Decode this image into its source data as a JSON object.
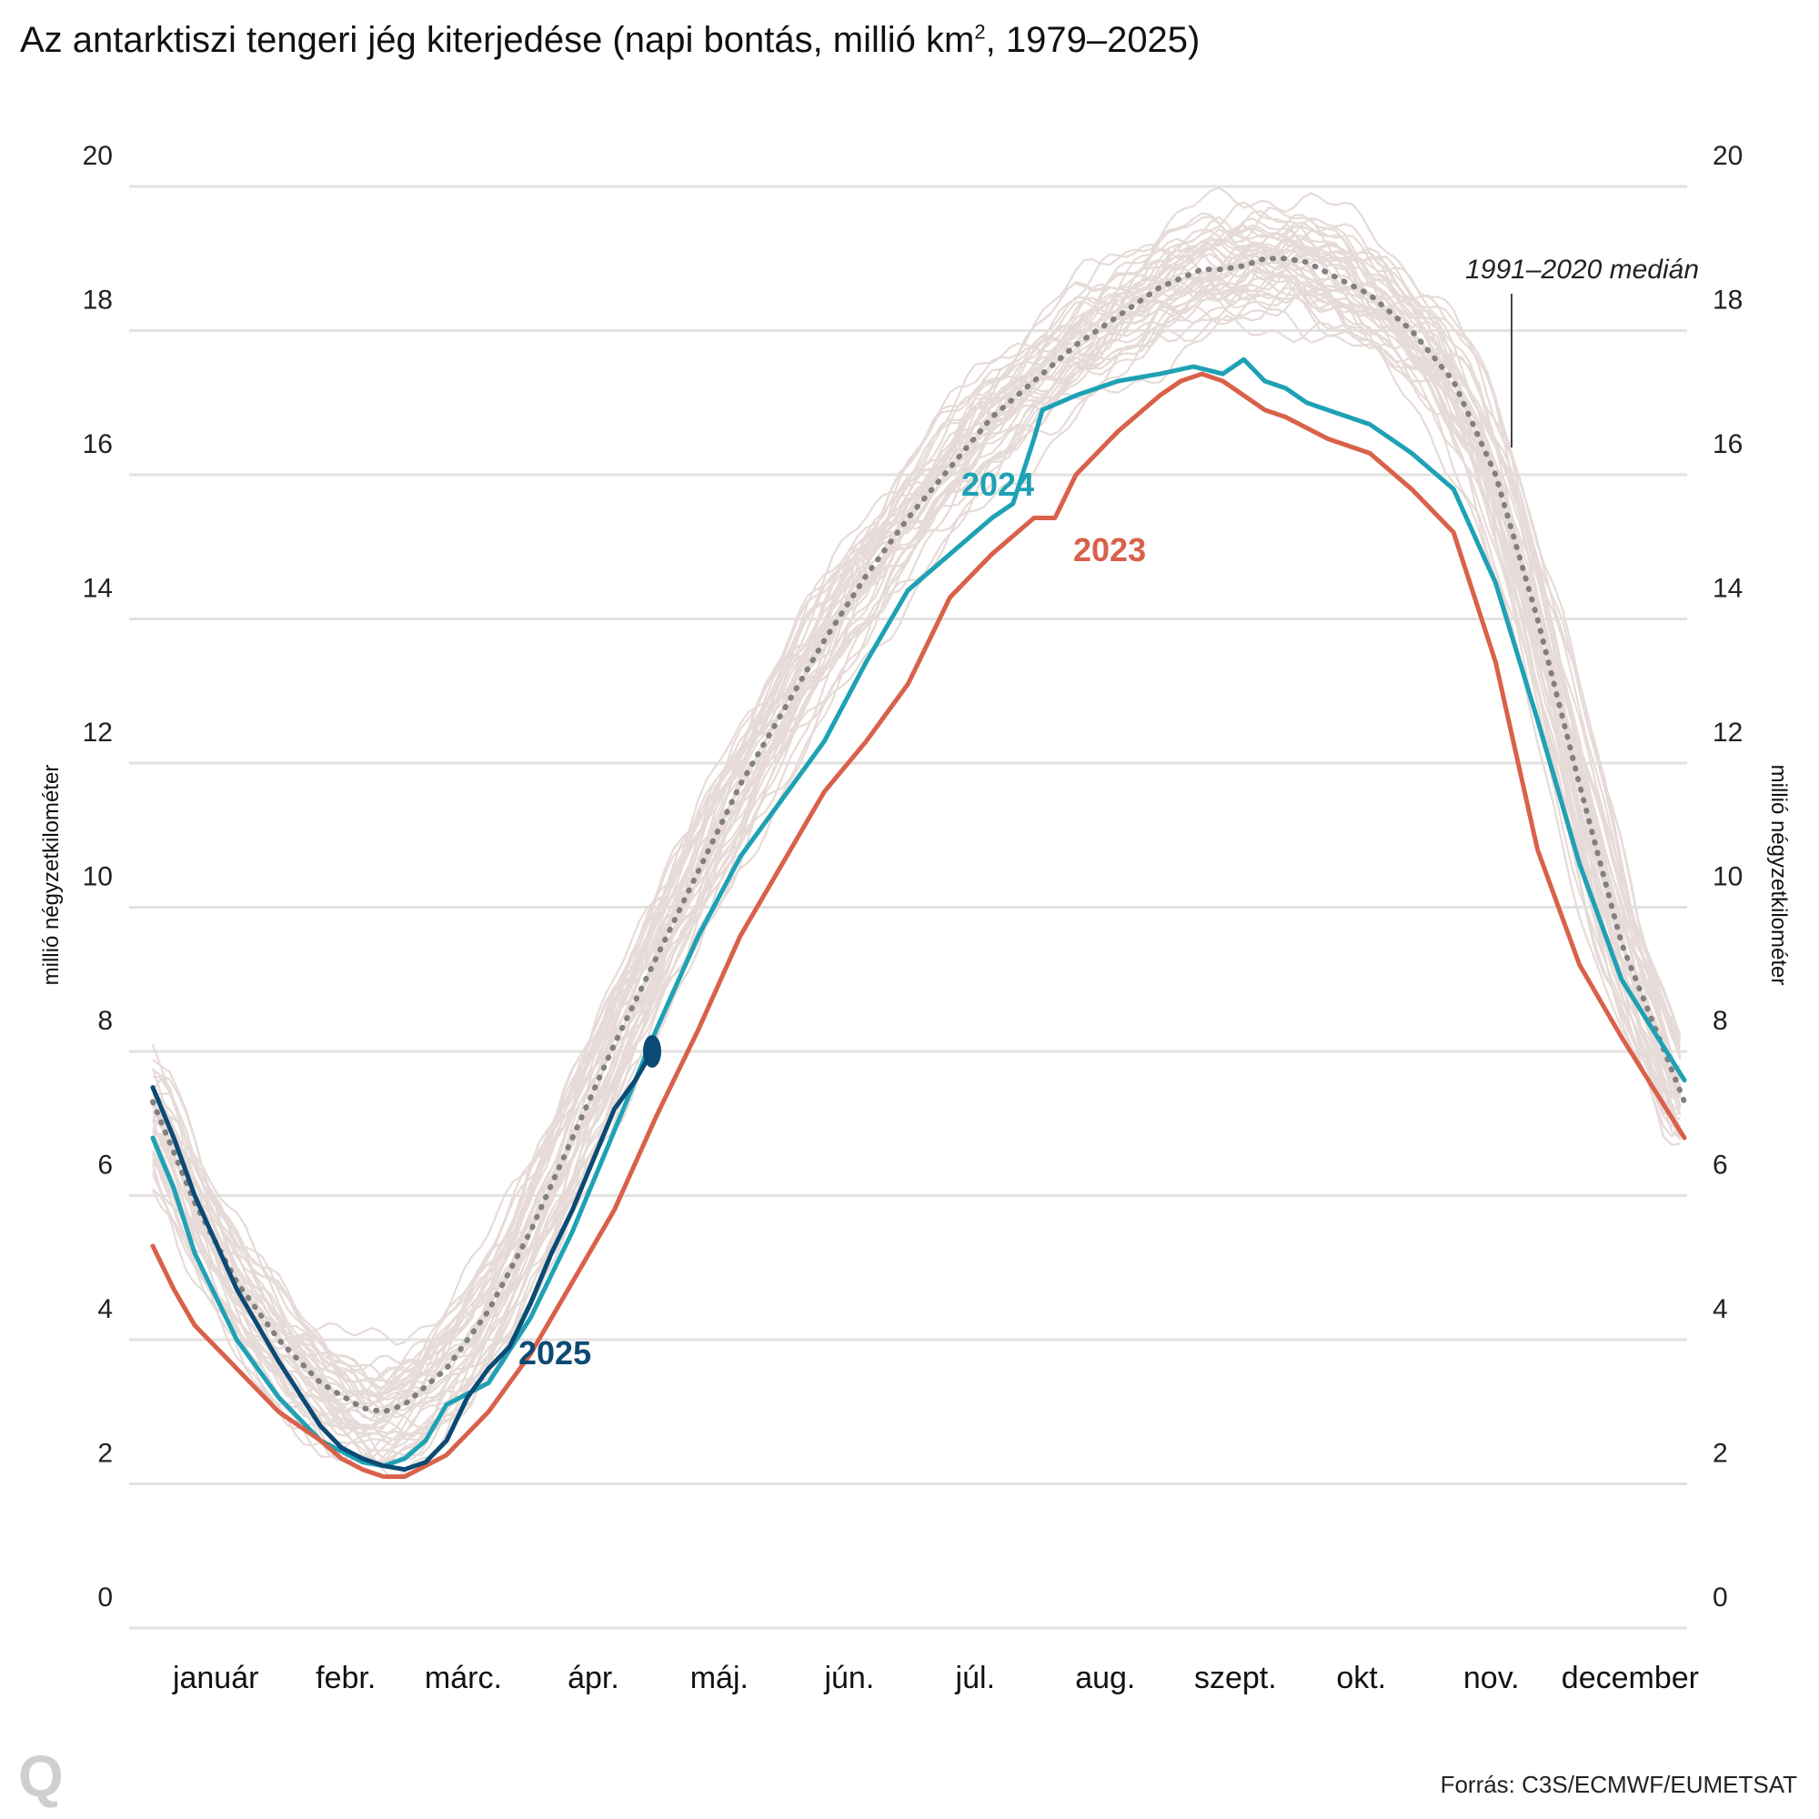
{
  "title": "Az antarktiszi tengeri jég kiterjedése (napi bontás, millió km",
  "title_sup": "2",
  "title_tail": ", 1979–2025)",
  "source": "Forrás: C3S/ECMWF/EUMETSAT",
  "logo": "Q",
  "chart_data": {
    "type": "line",
    "title": "Az antarktiszi tengeri jég kiterjedése (napi bontás, millió km², 1979–2025)",
    "ylabel": "millió négyzetkilométer",
    "ylabel_right": "millió négyzetkilométer",
    "ylim": [
      0,
      20
    ],
    "yticks": [
      0,
      2,
      4,
      6,
      8,
      10,
      12,
      14,
      16,
      18,
      20
    ],
    "xlim": [
      0,
      365
    ],
    "month_labels": [
      "január",
      "febr.",
      "márc.",
      "ápr.",
      "máj.",
      "jún.",
      "júl.",
      "aug.",
      "szept.",
      "okt.",
      "nov.",
      "december"
    ],
    "month_label_days": [
      15,
      46,
      74,
      105,
      135,
      166,
      196,
      227,
      258,
      288,
      319,
      349
    ],
    "grid": true,
    "background_years": "1979–2022",
    "colors": {
      "y2025": "#0b4a74",
      "y2024": "#1fa1b4",
      "y2023": "#d9614a",
      "median": "#808080",
      "background": "#e6dbd8"
    },
    "series": [
      {
        "name": "1991–2020 medián",
        "style": "dotted",
        "x": [
          0,
          10,
          20,
          30,
          40,
          50,
          55,
          60,
          70,
          80,
          90,
          100,
          110,
          120,
          130,
          140,
          150,
          160,
          170,
          180,
          190,
          200,
          210,
          220,
          230,
          240,
          250,
          255,
          260,
          265,
          270,
          275,
          280,
          290,
          300,
          310,
          320,
          330,
          340,
          350,
          365
        ],
        "y": [
          7.3,
          5.9,
          4.8,
          4.0,
          3.4,
          3.05,
          3.0,
          3.1,
          3.6,
          4.4,
          5.5,
          6.8,
          8.1,
          9.3,
          10.5,
          11.7,
          12.7,
          13.7,
          14.6,
          15.4,
          16.1,
          16.8,
          17.3,
          17.8,
          18.2,
          18.6,
          18.85,
          18.85,
          18.9,
          19.0,
          19.0,
          18.95,
          18.8,
          18.5,
          18.0,
          17.3,
          16.0,
          14.0,
          11.7,
          9.5,
          7.3
        ]
      },
      {
        "name": "2024",
        "x": [
          0,
          5,
          10,
          20,
          30,
          40,
          45,
          50,
          55,
          60,
          65,
          70,
          80,
          90,
          100,
          110,
          120,
          130,
          140,
          150,
          160,
          170,
          180,
          190,
          200,
          205,
          210,
          212,
          220,
          230,
          240,
          248,
          255,
          260,
          265,
          270,
          275,
          280,
          290,
          300,
          310,
          320,
          330,
          340,
          350,
          365
        ],
        "y": [
          6.8,
          6.1,
          5.2,
          4.0,
          3.2,
          2.6,
          2.45,
          2.3,
          2.25,
          2.35,
          2.6,
          3.1,
          3.4,
          4.3,
          5.5,
          6.9,
          8.3,
          9.6,
          10.7,
          11.5,
          12.3,
          13.4,
          14.4,
          14.9,
          15.4,
          15.6,
          16.5,
          16.9,
          17.1,
          17.3,
          17.4,
          17.5,
          17.4,
          17.6,
          17.3,
          17.2,
          17.0,
          16.9,
          16.7,
          16.3,
          15.8,
          14.5,
          12.6,
          10.6,
          9.0,
          7.6
        ]
      },
      {
        "name": "2023",
        "x": [
          0,
          5,
          10,
          20,
          30,
          40,
          45,
          50,
          55,
          60,
          70,
          80,
          90,
          100,
          110,
          120,
          130,
          140,
          150,
          160,
          170,
          180,
          190,
          200,
          210,
          215,
          220,
          230,
          240,
          245,
          250,
          255,
          260,
          265,
          270,
          280,
          290,
          300,
          310,
          320,
          330,
          340,
          350,
          365
        ],
        "y": [
          5.3,
          4.7,
          4.2,
          3.6,
          3.0,
          2.6,
          2.35,
          2.2,
          2.1,
          2.1,
          2.4,
          3.0,
          3.8,
          4.8,
          5.8,
          7.1,
          8.3,
          9.6,
          10.6,
          11.6,
          12.3,
          13.1,
          14.3,
          14.9,
          15.4,
          15.4,
          16.0,
          16.6,
          17.1,
          17.3,
          17.4,
          17.3,
          17.1,
          16.9,
          16.8,
          16.5,
          16.3,
          15.8,
          15.2,
          13.4,
          10.8,
          9.2,
          8.2,
          6.8
        ]
      },
      {
        "name": "2025",
        "x": [
          0,
          5,
          10,
          20,
          30,
          40,
          45,
          50,
          55,
          60,
          65,
          70,
          75,
          80,
          85,
          90,
          95,
          100,
          105,
          110,
          115,
          119
        ],
        "y": [
          7.5,
          6.8,
          6.0,
          4.7,
          3.7,
          2.8,
          2.5,
          2.35,
          2.25,
          2.2,
          2.3,
          2.6,
          3.2,
          3.6,
          3.9,
          4.5,
          5.2,
          5.8,
          6.5,
          7.2,
          7.6,
          8.0
        ]
      }
    ],
    "annotations": {
      "label_2024": "2024",
      "label_2023": "2023",
      "label_2025": "2025",
      "label_median": "1991–2020 medián"
    }
  }
}
